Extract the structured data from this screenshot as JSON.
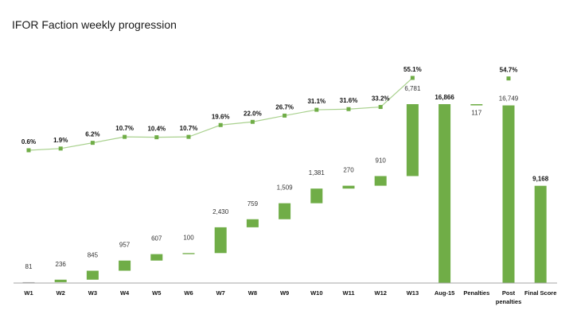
{
  "title": "IFOR Faction weekly progression",
  "colors": {
    "bar": "#70ad47",
    "line": "#a9d18e",
    "marker": "#70ad47",
    "axis": "#a6a6a6"
  },
  "chart_data": {
    "type": "waterfall",
    "title": "IFOR Faction weekly progression",
    "xlabel": "",
    "ylabel": "",
    "grid": false,
    "legend": "none",
    "categories": [
      "W1",
      "W2",
      "W3",
      "W4",
      "W5",
      "W6",
      "W7",
      "W8",
      "W9",
      "W10",
      "W11",
      "W12",
      "W13",
      "Aug-15",
      "Penalties",
      "Post penalties",
      "Final Score"
    ],
    "category_lines": [
      [
        "W1"
      ],
      [
        "W2"
      ],
      [
        "W3"
      ],
      [
        "W4"
      ],
      [
        "W5"
      ],
      [
        "W6"
      ],
      [
        "W7"
      ],
      [
        "W8"
      ],
      [
        "W9"
      ],
      [
        "W10"
      ],
      [
        "W11"
      ],
      [
        "W12"
      ],
      [
        "W13"
      ],
      [
        "Aug-15"
      ],
      [
        "Penalties"
      ],
      [
        "Post",
        "penalties"
      ],
      [
        "Final Score"
      ]
    ],
    "series": [
      {
        "name": "Points",
        "kind": "bar",
        "values": [
          81,
          236,
          845,
          957,
          607,
          100,
          2430,
          759,
          1509,
          1381,
          270,
          910,
          6781,
          16866,
          -117,
          16749,
          9168
        ],
        "bar_types": [
          "delta",
          "delta",
          "delta",
          "delta",
          "delta",
          "delta",
          "delta",
          "delta",
          "delta",
          "delta",
          "delta",
          "delta",
          "delta",
          "total",
          "delta",
          "total",
          "total"
        ],
        "labels": [
          "81",
          "236",
          "845",
          "957",
          "607",
          "100",
          "2,430",
          "759",
          "1,509",
          "1,381",
          "270",
          "910",
          "6,781",
          "16,866",
          "117",
          "16,749",
          "9,168"
        ],
        "bold_labels": [
          false,
          false,
          false,
          false,
          false,
          false,
          false,
          false,
          false,
          false,
          false,
          false,
          false,
          true,
          false,
          false,
          true
        ]
      },
      {
        "name": "Progression %",
        "kind": "line",
        "values": [
          0.6,
          1.9,
          6.2,
          10.7,
          10.4,
          10.7,
          19.6,
          22.0,
          26.7,
          31.1,
          31.6,
          33.2,
          55.1,
          null,
          null,
          54.7,
          null
        ],
        "labels": [
          "0.6%",
          "1.9%",
          "6.2%",
          "10.7%",
          "10.4%",
          "10.7%",
          "19.6%",
          "22.0%",
          "26.7%",
          "31.1%",
          "31.6%",
          "33.2%",
          "55.1%",
          "",
          "",
          "54.7%",
          ""
        ]
      }
    ],
    "ylim": [
      0,
      16866
    ]
  }
}
